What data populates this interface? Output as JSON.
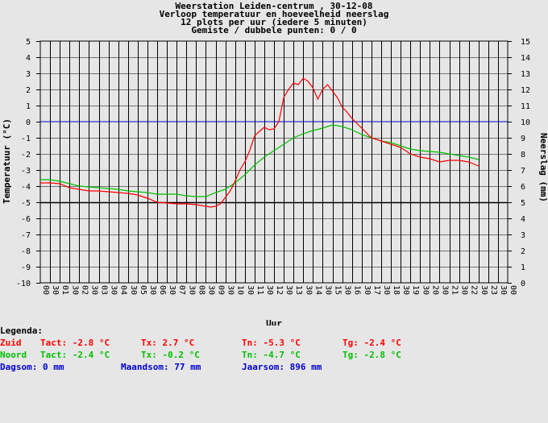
{
  "title_lines": [
    "Weerstation Leiden-centrum , 30-12-08",
    "Verloop temperatuur en hoeveelheid neerslag",
    "12 plots per uur (iedere 5 minuten)",
    "Gemiste / dubbele punten: 0 / 0"
  ],
  "colors": {
    "zuid": "#ff0000",
    "noord": "#00c000",
    "rain": "#0000cc",
    "grid": "#000000",
    "background": "#e6e6e6"
  },
  "chart_data": {
    "type": "line",
    "xlabel": "Uur",
    "ylabel": "Temperatuur (°C)",
    "y2label": "Neerslag (mm)",
    "ylim": [
      -10,
      5
    ],
    "y2lim": [
      0,
      15
    ],
    "xlim": [
      0,
      24
    ],
    "yticks": [
      "5",
      "4",
      "3",
      "2",
      "1",
      "0",
      "-1",
      "-2",
      "-3",
      "-4",
      "-5",
      "-6",
      "-7",
      "-8",
      "-9",
      "-10"
    ],
    "y2ticks": [
      "15",
      "14",
      "13",
      "12",
      "11",
      "10",
      "9",
      "8",
      "7",
      "6",
      "5",
      "4",
      "3",
      "2",
      "1",
      "0"
    ],
    "hour_ticks": [
      "00",
      "01",
      "02",
      "03",
      "04",
      "05",
      "06",
      "07",
      "08",
      "09",
      "10",
      "11",
      "12",
      "13",
      "14",
      "15",
      "16",
      "17",
      "18",
      "19",
      "20",
      "21",
      "22",
      "23",
      "00"
    ],
    "half_ticks": [
      "30",
      "30",
      "30",
      "30",
      "30",
      "30",
      "30",
      "30",
      "30",
      "30",
      "30",
      "30",
      "30",
      "30",
      "30",
      "30",
      "30",
      "30",
      "30",
      "30",
      "30",
      "30",
      "30",
      "30"
    ],
    "grid": true,
    "series": [
      {
        "name": "Zuid",
        "color": "#ff0000",
        "x": [
          0,
          0.5,
          1,
          1.5,
          2,
          2.5,
          3,
          3.5,
          4,
          4.5,
          5,
          5.5,
          6,
          6.5,
          7,
          7.5,
          8,
          8.25,
          8.5,
          8.75,
          9,
          9.25,
          9.5,
          9.75,
          10,
          10.25,
          10.5,
          10.75,
          11,
          11.25,
          11.5,
          11.75,
          12,
          12.25,
          12.5,
          12.75,
          13,
          13.25,
          13.5,
          13.75,
          14,
          14.25,
          14.5,
          14.75,
          15,
          15.25,
          15.5,
          15.75,
          16,
          16.5,
          17,
          17.5,
          18,
          18.5,
          19,
          19.5,
          20,
          20.5,
          21,
          21.5,
          22,
          22.5
        ],
        "y": [
          -3.8,
          -3.8,
          -3.85,
          -4.1,
          -4.2,
          -4.3,
          -4.3,
          -4.35,
          -4.4,
          -4.45,
          -4.55,
          -4.75,
          -5.0,
          -5.05,
          -5.1,
          -5.1,
          -5.15,
          -5.2,
          -5.25,
          -5.3,
          -5.25,
          -5.1,
          -4.7,
          -4.3,
          -3.7,
          -3.0,
          -2.5,
          -1.8,
          -0.9,
          -0.6,
          -0.35,
          -0.5,
          -0.45,
          0.0,
          1.5,
          2.0,
          2.4,
          2.3,
          2.7,
          2.5,
          2.1,
          1.4,
          2.0,
          2.3,
          1.9,
          1.5,
          0.9,
          0.6,
          0.2,
          -0.4,
          -1.0,
          -1.2,
          -1.4,
          -1.6,
          -2.0,
          -2.2,
          -2.3,
          -2.5,
          -2.4,
          -2.4,
          -2.5,
          -2.75
        ]
      },
      {
        "name": "Noord",
        "color": "#00c000",
        "x": [
          0,
          0.5,
          1,
          1.5,
          2,
          2.5,
          3,
          3.5,
          4,
          4.5,
          5,
          5.5,
          6,
          6.5,
          7,
          7.5,
          8,
          8.5,
          9,
          9.5,
          10,
          10.5,
          11,
          11.5,
          12,
          12.5,
          13,
          13.5,
          14,
          14.5,
          15,
          15.5,
          16,
          16.5,
          17,
          17.5,
          18,
          18.5,
          19,
          19.5,
          20,
          20.5,
          21,
          21.5,
          22,
          22.5
        ],
        "y": [
          -3.6,
          -3.6,
          -3.7,
          -3.85,
          -4.0,
          -4.05,
          -4.1,
          -4.15,
          -4.2,
          -4.3,
          -4.35,
          -4.4,
          -4.5,
          -4.5,
          -4.5,
          -4.6,
          -4.65,
          -4.65,
          -4.4,
          -4.2,
          -3.8,
          -3.3,
          -2.7,
          -2.2,
          -1.8,
          -1.4,
          -1.0,
          -0.75,
          -0.55,
          -0.4,
          -0.2,
          -0.3,
          -0.5,
          -0.8,
          -1.0,
          -1.2,
          -1.3,
          -1.5,
          -1.7,
          -1.8,
          -1.85,
          -1.9,
          -2.0,
          -2.1,
          -2.2,
          -2.35
        ]
      },
      {
        "name": "Neerslag",
        "color": "#0000cc",
        "axis": "right",
        "x": [
          0,
          24
        ],
        "y": [
          10,
          10
        ]
      }
    ]
  },
  "legend": {
    "heading": "Legenda:",
    "rows": [
      {
        "name": "Zuid",
        "tact": "Tact: -2.8 °C",
        "tx": "Tx: 2.7 °C",
        "tn": "Tn: -5.3 °C",
        "tg": "Tg: -2.4 °C"
      },
      {
        "name": "Noord",
        "tact": "Tact: -2.4 °C",
        "tx": "Tx: -0.2 °C",
        "tn": "Tn: -4.7 °C",
        "tg": "Tg: -2.8 °C"
      }
    ],
    "rain": {
      "dag": "Dagsom: 0 mm",
      "maand": "Maandsom: 77 mm",
      "jaar": "Jaarsom: 896 mm"
    }
  }
}
